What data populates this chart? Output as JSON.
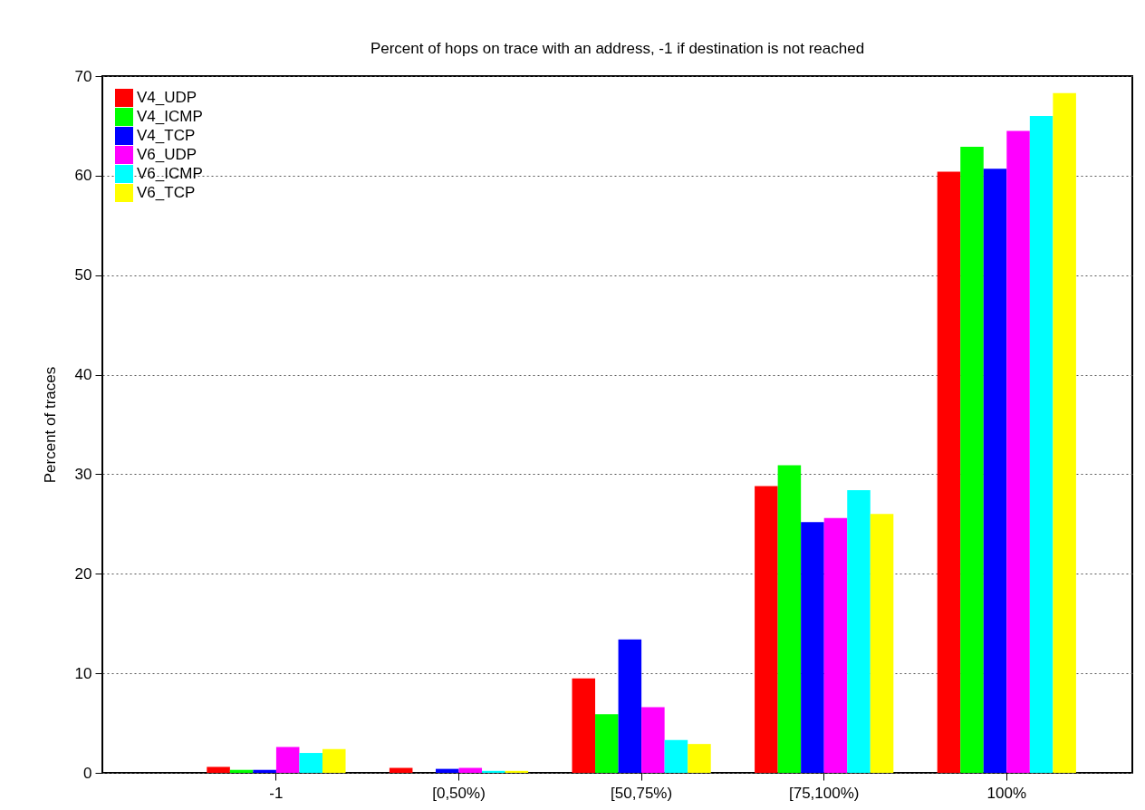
{
  "chart_data": {
    "type": "bar",
    "title": "Percent of hops on trace with an address,\n-1 if destination is not reached",
    "ylabel": "Percent of traces",
    "categories": [
      "-1",
      "[0,50%)",
      "[50,75%)",
      "[75,100%)",
      "100%"
    ],
    "series": [
      {
        "name": "V4_UDP",
        "color": "#ff0000",
        "values": [
          0.6,
          0.5,
          9.5,
          28.8,
          60.4
        ]
      },
      {
        "name": "V4_ICMP",
        "color": "#00ff00",
        "values": [
          0.3,
          0,
          5.9,
          30.9,
          62.9
        ]
      },
      {
        "name": "V4_TCP",
        "color": "#0000ff",
        "values": [
          0.3,
          0.4,
          13.4,
          25.2,
          60.7
        ]
      },
      {
        "name": "V6_UDP",
        "color": "#ff00ff",
        "values": [
          2.6,
          0.5,
          6.6,
          25.6,
          64.5
        ]
      },
      {
        "name": "V6_ICMP",
        "color": "#00ffff",
        "values": [
          2.0,
          0.2,
          3.3,
          28.4,
          66.0
        ]
      },
      {
        "name": "V6_TCP",
        "color": "#ffff00",
        "values": [
          2.4,
          0.2,
          2.9,
          26.0,
          68.3
        ]
      }
    ],
    "ylim": [
      0,
      70
    ],
    "yticks": [
      0,
      10,
      20,
      30,
      40,
      50,
      60,
      70
    ],
    "grid": "y",
    "legend": "top left"
  }
}
